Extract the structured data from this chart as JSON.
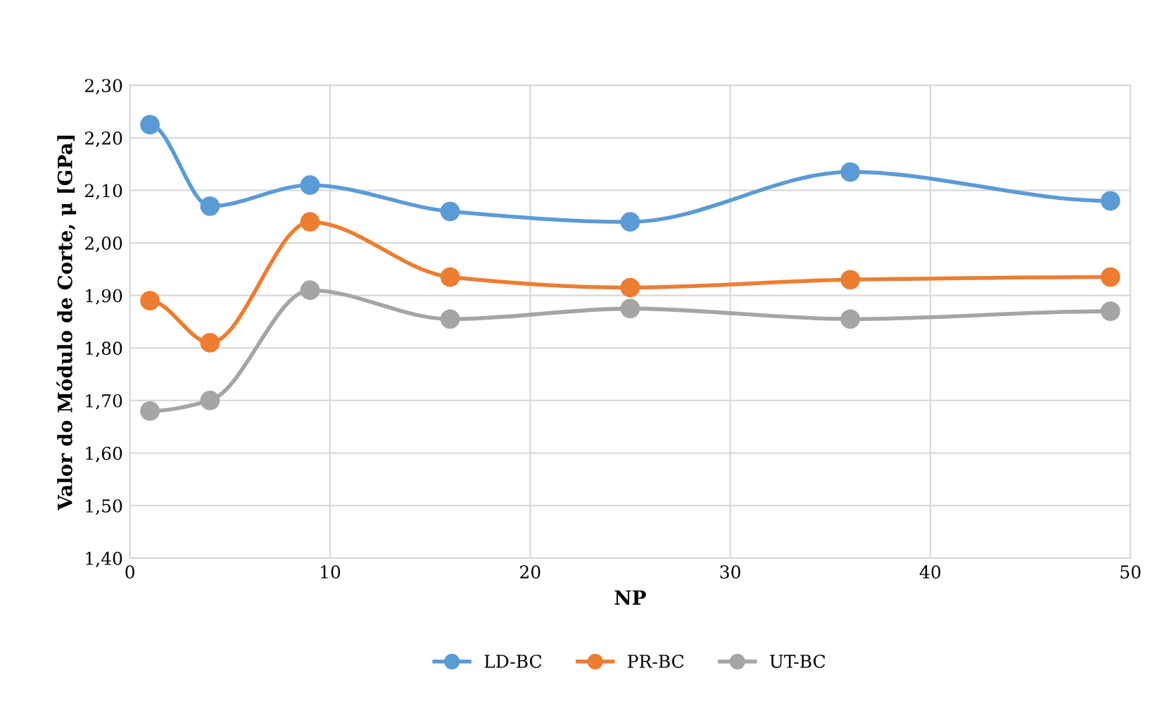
{
  "chart_data": {
    "type": "line",
    "xlabel": "NP",
    "ylabel": "Valor do Módulo de Corte, μ [GPa]",
    "x": [
      1,
      4,
      9,
      16,
      25,
      36,
      49
    ],
    "series": [
      {
        "name": "LD-BC",
        "color": "#5b9bd5",
        "values": [
          2.225,
          2.07,
          2.11,
          2.06,
          2.04,
          2.135,
          2.08
        ]
      },
      {
        "name": "PR-BC",
        "color": "#ed7d31",
        "values": [
          1.89,
          1.81,
          2.04,
          1.935,
          1.915,
          1.93,
          1.935
        ]
      },
      {
        "name": "UT-BC",
        "color": "#a5a5a5",
        "values": [
          1.68,
          1.7,
          1.91,
          1.855,
          1.875,
          1.855,
          1.87
        ]
      }
    ],
    "xlim": [
      0,
      50
    ],
    "xticks": [
      0,
      10,
      20,
      30,
      40,
      50
    ],
    "ylim": [
      1.4,
      2.3
    ],
    "yticks": [
      {
        "value": 1.4,
        "label": "1,40"
      },
      {
        "value": 1.5,
        "label": "1,50"
      },
      {
        "value": 1.6,
        "label": "1,60"
      },
      {
        "value": 1.7,
        "label": "1,70"
      },
      {
        "value": 1.8,
        "label": "1,80"
      },
      {
        "value": 1.9,
        "label": "1,90"
      },
      {
        "value": 2.0,
        "label": "2,00"
      },
      {
        "value": 2.1,
        "label": "2,10"
      },
      {
        "value": 2.2,
        "label": "2,20"
      },
      {
        "value": 2.3,
        "label": "2,30"
      }
    ],
    "grid": true,
    "legend": "bottom",
    "marker": "circle",
    "line_style": "solid"
  }
}
